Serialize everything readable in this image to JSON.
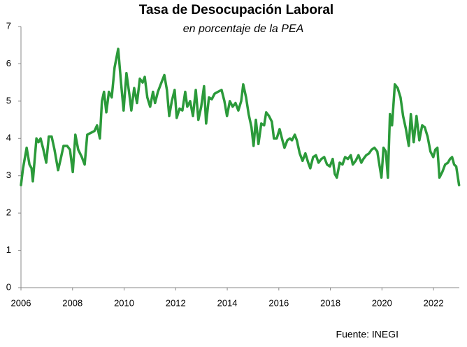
{
  "chart_data": {
    "type": "line",
    "title": "Tasa de Desocupación Laboral",
    "subtitle": "en porcentaje de la PEA",
    "source": "Fuente: INEGI",
    "color": "#2b9a3a",
    "xlim": [
      2006,
      2023
    ],
    "xticks": [
      2006,
      2008,
      2010,
      2012,
      2014,
      2016,
      2018,
      2020,
      2022
    ],
    "ylim": [
      0,
      7
    ],
    "yticks": [
      0,
      1,
      2,
      3,
      4,
      5,
      6,
      7
    ],
    "grid": false,
    "x": [
      2006.0,
      2006.08,
      2006.22,
      2006.33,
      2006.41,
      2006.46,
      2006.6,
      2006.68,
      2006.76,
      2006.87,
      2006.98,
      2007.08,
      2007.19,
      2007.3,
      2007.44,
      2007.54,
      2007.65,
      2007.79,
      2007.9,
      2008.01,
      2008.11,
      2008.22,
      2008.36,
      2008.47,
      2008.57,
      2008.71,
      2008.85,
      2008.95,
      2009.06,
      2009.14,
      2009.22,
      2009.31,
      2009.41,
      2009.52,
      2009.63,
      2009.77,
      2009.88,
      2009.98,
      2010.09,
      2010.2,
      2010.28,
      2010.39,
      2010.5,
      2010.61,
      2010.72,
      2010.8,
      2010.9,
      2011.01,
      2011.12,
      2011.2,
      2011.31,
      2011.42,
      2011.56,
      2011.66,
      2011.75,
      2011.85,
      2011.96,
      2012.04,
      2012.15,
      2012.26,
      2012.37,
      2012.45,
      2012.56,
      2012.67,
      2012.78,
      2012.88,
      2012.99,
      2013.1,
      2013.18,
      2013.29,
      2013.4,
      2013.51,
      2013.64,
      2013.78,
      2013.89,
      2013.99,
      2014.1,
      2014.21,
      2014.32,
      2014.43,
      2014.54,
      2014.62,
      2014.73,
      2014.83,
      2014.94,
      2015.02,
      2015.11,
      2015.21,
      2015.32,
      2015.43,
      2015.51,
      2015.62,
      2015.73,
      2015.81,
      2015.92,
      2016.03,
      2016.14,
      2016.22,
      2016.33,
      2016.43,
      2016.51,
      2016.62,
      2016.7,
      2016.81,
      2016.92,
      2017.03,
      2017.14,
      2017.22,
      2017.33,
      2017.44,
      2017.54,
      2017.65,
      2017.76,
      2017.87,
      2017.98,
      2018.09,
      2018.17,
      2018.25,
      2018.36,
      2018.47,
      2018.57,
      2018.68,
      2018.79,
      2018.87,
      2018.98,
      2019.09,
      2019.2,
      2019.28,
      2019.39,
      2019.5,
      2019.6,
      2019.71,
      2019.82,
      2019.9,
      2019.98,
      2020.06,
      2020.15,
      2020.23,
      2020.31,
      2020.39,
      2020.5,
      2020.61,
      2020.72,
      2020.82,
      2020.93,
      2021.04,
      2021.12,
      2021.23,
      2021.34,
      2021.45,
      2021.56,
      2021.66,
      2021.77,
      2021.88,
      2021.99,
      2022.07,
      2022.15,
      2022.23,
      2022.34,
      2022.45,
      2022.56,
      2022.64,
      2022.72,
      2022.8,
      2022.88,
      2022.99
    ],
    "values": [
      2.75,
      3.2,
      3.75,
      3.3,
      3.2,
      2.85,
      4.0,
      3.9,
      4.0,
      3.7,
      3.35,
      4.05,
      4.05,
      3.7,
      3.15,
      3.45,
      3.8,
      3.8,
      3.7,
      3.1,
      4.1,
      3.7,
      3.5,
      3.3,
      4.1,
      4.15,
      4.2,
      4.35,
      4.0,
      5.0,
      5.25,
      4.7,
      5.25,
      5.1,
      5.9,
      6.4,
      5.5,
      4.75,
      5.75,
      5.2,
      4.75,
      5.35,
      4.95,
      5.6,
      5.5,
      5.65,
      5.1,
      4.85,
      5.25,
      4.95,
      5.25,
      5.45,
      5.7,
      5.3,
      4.6,
      5.0,
      5.3,
      4.55,
      4.8,
      4.75,
      5.25,
      4.85,
      5.0,
      4.6,
      5.3,
      4.5,
      4.85,
      5.4,
      4.4,
      5.1,
      5.05,
      5.2,
      5.25,
      5.3,
      5.0,
      4.6,
      5.0,
      4.85,
      4.95,
      4.75,
      5.0,
      5.45,
      5.1,
      4.65,
      4.3,
      3.8,
      4.5,
      3.85,
      4.4,
      4.35,
      4.7,
      4.6,
      4.45,
      4.0,
      4.0,
      4.25,
      3.95,
      3.75,
      3.95,
      4.0,
      3.95,
      4.1,
      3.95,
      3.6,
      3.4,
      3.6,
      3.35,
      3.2,
      3.5,
      3.55,
      3.35,
      3.45,
      3.5,
      3.3,
      3.25,
      3.45,
      3.05,
      2.95,
      3.35,
      3.3,
      3.5,
      3.45,
      3.55,
      3.3,
      3.4,
      3.55,
      3.35,
      3.45,
      3.55,
      3.6,
      3.7,
      3.75,
      3.65,
      3.3,
      2.95,
      3.75,
      3.65,
      2.95,
      4.65,
      4.35,
      5.45,
      5.35,
      5.1,
      4.6,
      4.25,
      3.8,
      4.65,
      3.9,
      4.6,
      3.95,
      4.35,
      4.3,
      4.05,
      3.65,
      3.5,
      3.7,
      3.75,
      2.95,
      3.1,
      3.3,
      3.35,
      3.45,
      3.5,
      3.3,
      3.25,
      2.75
    ]
  }
}
